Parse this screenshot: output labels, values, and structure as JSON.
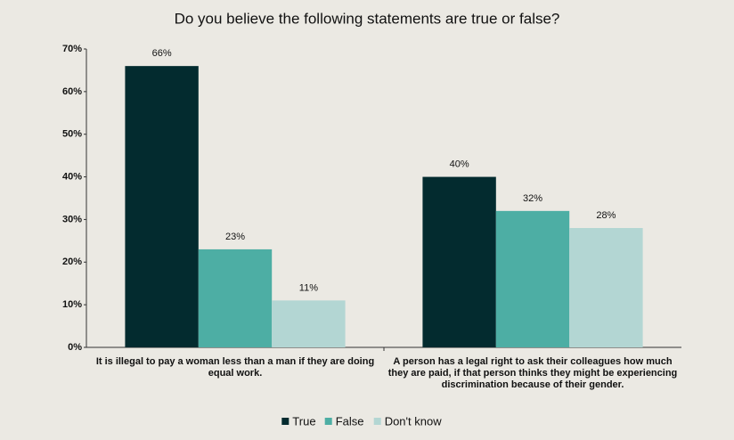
{
  "chart_data": {
    "type": "bar",
    "title": "Do you believe the following statements are true or false?",
    "categories": [
      "It is illegal to pay a woman less than a man if they are doing equal work.",
      "A person has a legal right to ask their colleagues how much they are paid, if that person thinks they might be experiencing discrimination because of their gender."
    ],
    "series": [
      {
        "name": "True",
        "color": "#032b2f",
        "values": [
          66,
          40
        ],
        "value_labels": [
          "66%",
          "40%"
        ]
      },
      {
        "name": "False",
        "color": "#4daea4",
        "values": [
          23,
          32
        ],
        "value_labels": [
          "23%",
          "32%"
        ]
      },
      {
        "name": "Don't know",
        "color": "#b3d6d3",
        "values": [
          11,
          28
        ],
        "value_labels": [
          "11%",
          "28%"
        ]
      }
    ],
    "ylim": [
      0,
      70
    ],
    "yticks": [
      {
        "value": 0,
        "label": "0%"
      },
      {
        "value": 10,
        "label": "10%"
      },
      {
        "value": 20,
        "label": "20%"
      },
      {
        "value": 30,
        "label": "30%"
      },
      {
        "value": 40,
        "label": "40%"
      },
      {
        "value": 50,
        "label": "50%"
      },
      {
        "value": 60,
        "label": "60%"
      },
      {
        "value": 70,
        "label": "70%"
      }
    ],
    "grid": false,
    "legend": "bottom"
  }
}
